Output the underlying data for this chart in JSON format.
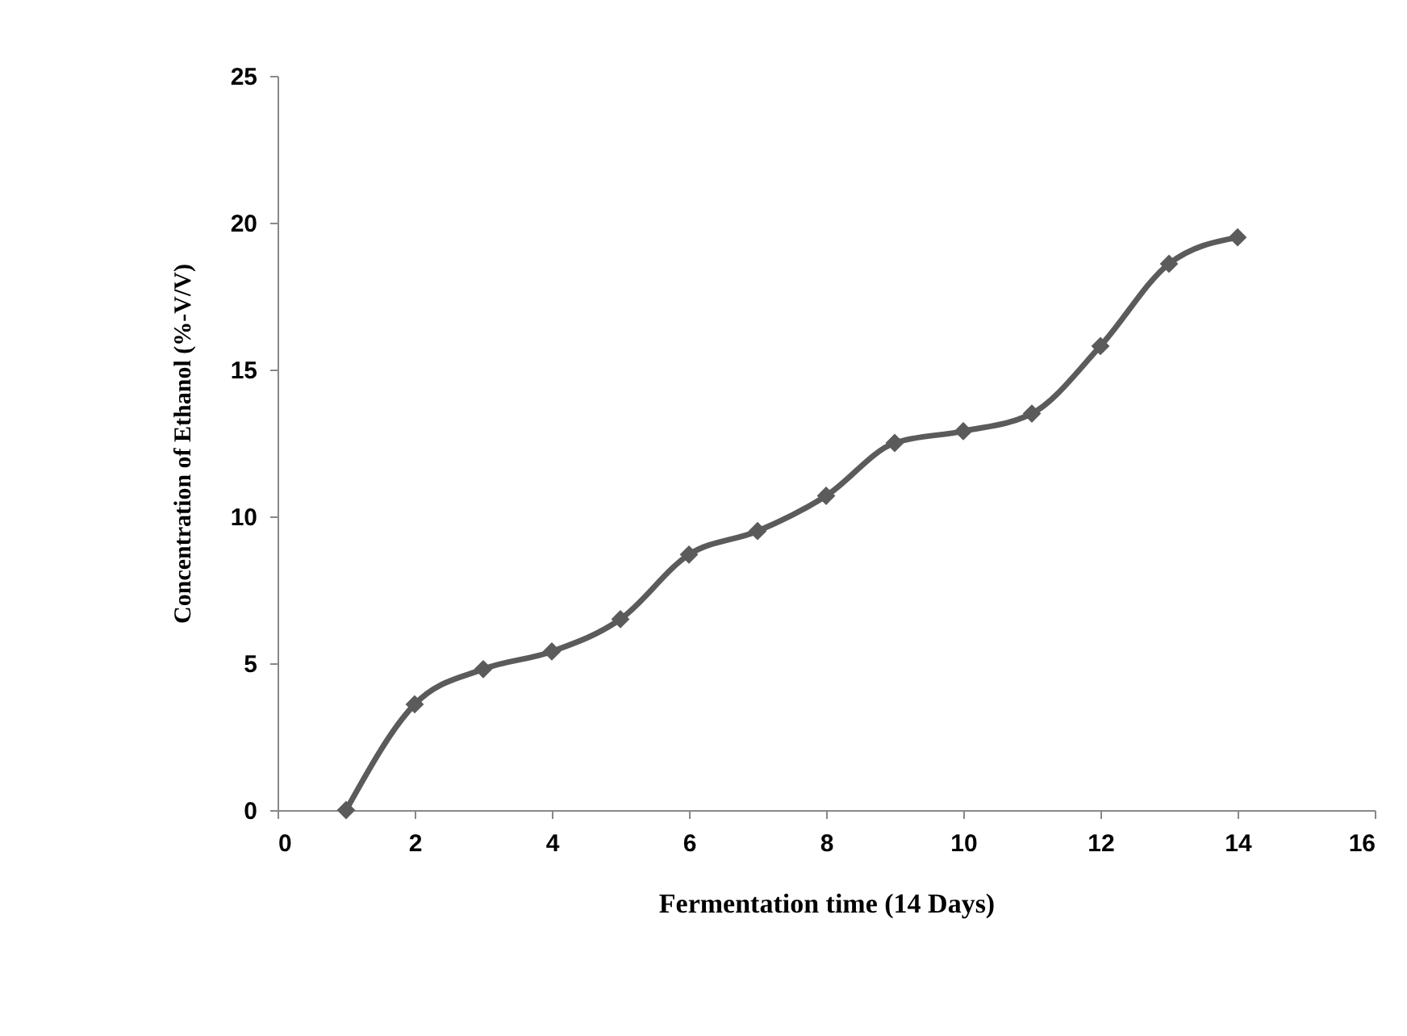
{
  "chart_data": {
    "type": "line",
    "xlabel": "Fermentation time (14 Days)",
    "ylabel": "Concentration of  Ethanol (%-V/V)",
    "x": [
      1,
      2,
      3,
      4,
      5,
      6,
      7,
      8,
      9,
      10,
      11,
      12,
      13,
      14
    ],
    "series": [
      {
        "color": "#5b5b5b",
        "values": [
          0,
          3.6,
          4.8,
          5.4,
          6.5,
          8.7,
          9.5,
          10.7,
          12.5,
          12.9,
          13.5,
          15.8,
          18.6,
          19.5
        ]
      }
    ],
    "xlim": [
      0,
      16
    ],
    "xticks": [
      0,
      2,
      4,
      6,
      8,
      10,
      12,
      14,
      16
    ],
    "ylim": [
      0,
      25
    ],
    "yticks": [
      0,
      5,
      10,
      15,
      20,
      25
    ],
    "marker": "diamond",
    "line_style": "solid",
    "grid": false
  }
}
